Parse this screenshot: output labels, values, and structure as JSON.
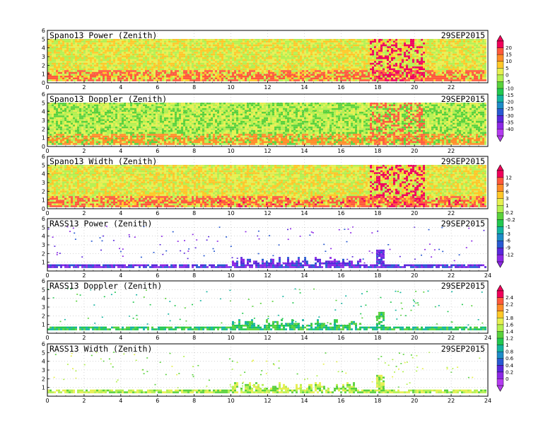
{
  "chart_data": [
    {
      "type": "heatmap",
      "title": "Spano13 Power (Zenith)",
      "date": "29SEP2015",
      "xlim": [
        0,
        24
      ],
      "xticks": [
        0,
        2,
        4,
        6,
        8,
        10,
        12,
        14,
        16,
        18,
        20,
        22
      ],
      "ylim": [
        0,
        6
      ],
      "yticks": [
        0,
        1,
        2,
        3,
        4,
        5,
        6
      ],
      "colorbar": "spano_power",
      "fill": "dense",
      "base_level": 3,
      "grid": "dotted"
    },
    {
      "type": "heatmap",
      "title": "Spano13 Doppler (Zenith)",
      "date": "29SEP2015",
      "xlim": [
        0,
        24
      ],
      "xticks": [
        0,
        2,
        4,
        6,
        8,
        10,
        12,
        14,
        16,
        18,
        20,
        22
      ],
      "ylim": [
        0,
        6
      ],
      "yticks": [
        0,
        1,
        2,
        3,
        4,
        5,
        6
      ],
      "colorbar": "spano_power",
      "fill": "dense",
      "base_level": 4,
      "grid": "dotted"
    },
    {
      "type": "heatmap",
      "title": "Spano13 Width (Zenith)",
      "date": "29SEP2015",
      "xlim": [
        0,
        24
      ],
      "xticks": [
        0,
        2,
        4,
        6,
        8,
        10,
        12,
        14,
        16,
        18,
        20,
        22
      ],
      "ylim": [
        0,
        6
      ],
      "yticks": [
        0,
        1,
        2,
        3,
        4,
        5,
        6
      ],
      "colorbar": "spano_width",
      "fill": "dense",
      "base_level": 3,
      "grid": "dotted"
    },
    {
      "type": "heatmap",
      "title": "RASS13 Power (Zenith)",
      "date": "29SEP2015",
      "xlim": [
        0,
        24
      ],
      "xticks": [
        0,
        2,
        4,
        6,
        8,
        10,
        12,
        14,
        16,
        18,
        20,
        22,
        24
      ],
      "ylim": [
        0,
        6
      ],
      "yticks": [
        1,
        2,
        3,
        4,
        5,
        6
      ],
      "colorbar": "spano_width",
      "fill": "sparse",
      "base_level": 11,
      "grid": "dotted"
    },
    {
      "type": "heatmap",
      "title": "RASS13 Doppler (Zenith)",
      "date": "29SEP2015",
      "xlim": [
        0,
        24
      ],
      "xticks": [
        0,
        2,
        4,
        6,
        8,
        10,
        12,
        14,
        16,
        18,
        20,
        22,
        24
      ],
      "ylim": [
        0,
        6
      ],
      "yticks": [
        1,
        2,
        3,
        4,
        5,
        6
      ],
      "colorbar": "rass",
      "fill": "sparse",
      "base_level": 7,
      "grid": "dotted"
    },
    {
      "type": "heatmap",
      "title": "RASS13 Width (Zenith)",
      "date": "29SEP2015",
      "xlim": [
        0,
        24
      ],
      "xticks": [
        0,
        2,
        4,
        6,
        8,
        10,
        12,
        14,
        16,
        18,
        20,
        22,
        24
      ],
      "ylim": [
        0,
        6
      ],
      "yticks": [
        1,
        2,
        3,
        4,
        5,
        6
      ],
      "colorbar": "rass",
      "fill": "sparse",
      "base_level": 5,
      "grid": "dotted"
    }
  ],
  "colorbars": {
    "spano_power": {
      "labels": [
        "20",
        "15",
        "10",
        "5",
        "0",
        "-5",
        "-10",
        "-15",
        "-20",
        "-25",
        "-30",
        "-35",
        "-40"
      ],
      "colors": [
        "#f0005a",
        "#ff5a3c",
        "#ff8c28",
        "#ffc828",
        "#e6f050",
        "#b4f050",
        "#5ad23c",
        "#23c850",
        "#14b4a0",
        "#1e8cc8",
        "#285ad2",
        "#5a28dc",
        "#8c28e6",
        "#b43cf0"
      ]
    },
    "spano_width": {
      "labels": [
        "12",
        "9",
        "6",
        "3",
        "1",
        "0.2",
        "-0.2",
        "-1",
        "-3",
        "-6",
        "-9",
        "-12"
      ],
      "colors": [
        "#f0005a",
        "#ff5a3c",
        "#ff8c28",
        "#ffc828",
        "#e6f050",
        "#b4f050",
        "#5ad23c",
        "#23c850",
        "#14b4a0",
        "#1e8cc8",
        "#285ad2",
        "#5a28dc",
        "#8c28e6"
      ]
    },
    "rass": {
      "labels": [
        "2.4",
        "2.2",
        "2",
        "1.8",
        "1.6",
        "1.4",
        "1.2",
        "1",
        "0.8",
        "0.6",
        "0.4",
        "0.2",
        "0"
      ],
      "colors": [
        "#f0005a",
        "#ff5a3c",
        "#ff8c28",
        "#ffc828",
        "#e6f050",
        "#b4f050",
        "#5ad23c",
        "#23c850",
        "#14b4a0",
        "#1e8cc8",
        "#285ad2",
        "#5a28dc",
        "#8c28e6",
        "#b43cf0"
      ]
    }
  }
}
